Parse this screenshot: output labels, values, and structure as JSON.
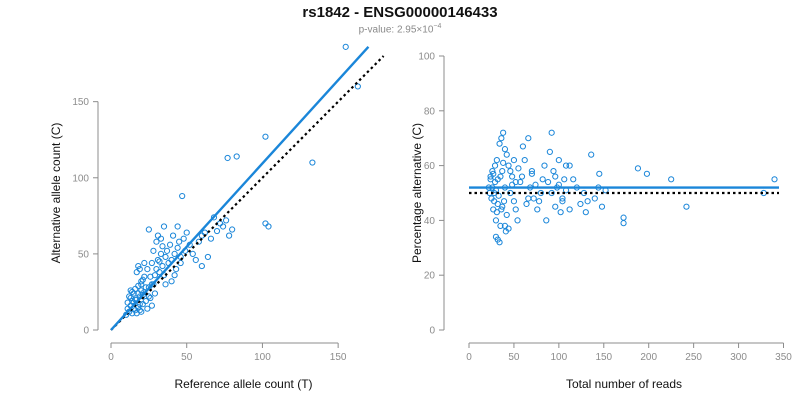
{
  "title": "rs1842 - ENSG00000146433",
  "subtitle": {
    "prefix": "p-value: 2.95×10",
    "exponent": "−4"
  },
  "chart_data": [
    {
      "type": "scatter",
      "xlabel": "Reference allele count (T)",
      "ylabel": "Alternative allele count (C)",
      "xlim": [
        0,
        175
      ],
      "ylim": [
        0,
        180
      ],
      "xticks": [
        0,
        50,
        100,
        150
      ],
      "yticks": [
        0,
        50,
        100,
        150
      ],
      "grid": false,
      "points": [
        [
          10,
          10
        ],
        [
          11,
          14
        ],
        [
          12,
          12
        ],
        [
          13,
          16
        ],
        [
          14,
          11
        ],
        [
          15,
          18
        ],
        [
          16,
          13
        ],
        [
          17,
          20
        ],
        [
          18,
          15
        ],
        [
          19,
          22
        ],
        [
          20,
          12
        ],
        [
          21,
          17
        ],
        [
          22,
          25
        ],
        [
          23,
          19
        ],
        [
          24,
          14
        ],
        [
          25,
          28
        ],
        [
          26,
          21
        ],
        [
          27,
          16
        ],
        [
          28,
          30
        ],
        [
          29,
          24
        ],
        [
          12,
          22
        ],
        [
          13,
          26
        ],
        [
          14,
          19
        ],
        [
          15,
          24
        ],
        [
          16,
          27
        ],
        [
          17,
          11
        ],
        [
          18,
          29
        ],
        [
          19,
          17
        ],
        [
          20,
          32
        ],
        [
          21,
          23
        ],
        [
          11,
          18
        ],
        [
          13,
          21
        ],
        [
          14,
          25
        ],
        [
          15,
          14
        ],
        [
          16,
          20
        ],
        [
          18,
          24
        ],
        [
          19,
          13
        ],
        [
          20,
          26
        ],
        [
          22,
          35
        ],
        [
          23,
          28
        ],
        [
          17,
          38
        ],
        [
          18,
          42
        ],
        [
          19,
          40
        ],
        [
          20,
          30
        ],
        [
          21,
          33
        ],
        [
          22,
          44
        ],
        [
          24,
          40
        ],
        [
          25,
          22
        ],
        [
          26,
          35
        ],
        [
          27,
          30
        ],
        [
          25,
          66
        ],
        [
          27,
          44
        ],
        [
          28,
          52
        ],
        [
          29,
          36
        ],
        [
          30,
          40
        ],
        [
          31,
          46
        ],
        [
          32,
          38
        ],
        [
          33,
          60
        ],
        [
          34,
          55
        ],
        [
          35,
          68
        ],
        [
          30,
          58
        ],
        [
          31,
          62
        ],
        [
          32,
          45
        ],
        [
          33,
          50
        ],
        [
          34,
          42
        ],
        [
          35,
          36
        ],
        [
          36,
          48
        ],
        [
          37,
          52
        ],
        [
          38,
          44
        ],
        [
          39,
          56
        ],
        [
          40,
          46
        ],
        [
          41,
          62
        ],
        [
          42,
          50
        ],
        [
          43,
          40
        ],
        [
          44,
          54
        ],
        [
          45,
          58
        ],
        [
          46,
          48
        ],
        [
          47,
          88
        ],
        [
          48,
          60
        ],
        [
          49,
          52
        ],
        [
          40,
          32
        ],
        [
          42,
          36
        ],
        [
          44,
          68
        ],
        [
          46,
          44
        ],
        [
          50,
          64
        ],
        [
          52,
          56
        ],
        [
          54,
          50
        ],
        [
          56,
          46
        ],
        [
          58,
          58
        ],
        [
          60,
          62
        ],
        [
          62,
          64
        ],
        [
          64,
          48
        ],
        [
          66,
          60
        ],
        [
          68,
          74
        ],
        [
          70,
          65
        ],
        [
          72,
          70
        ],
        [
          74,
          68
        ],
        [
          76,
          72
        ],
        [
          78,
          62
        ],
        [
          80,
          66
        ],
        [
          77,
          113
        ],
        [
          83,
          114
        ],
        [
          102,
          70
        ],
        [
          104,
          68
        ],
        [
          102,
          127
        ],
        [
          133,
          110
        ],
        [
          155,
          186
        ],
        [
          163,
          160
        ],
        [
          60,
          42
        ],
        [
          36,
          30
        ]
      ],
      "fit_line": [
        [
          0,
          0
        ],
        [
          170,
          186
        ]
      ],
      "reference_line": [
        [
          0,
          0
        ],
        [
          180,
          180
        ]
      ]
    },
    {
      "type": "scatter",
      "xlabel": "Total number of reads",
      "ylabel": "Percentage alternative (C)",
      "xlim": [
        0,
        345
      ],
      "ylim": [
        0,
        100
      ],
      "xticks": [
        0,
        50,
        100,
        150,
        200,
        250,
        300,
        350
      ],
      "yticks": [
        0,
        20,
        40,
        60,
        80,
        100
      ],
      "grid": false,
      "points": [
        [
          22,
          52
        ],
        [
          24,
          56
        ],
        [
          25,
          48
        ],
        [
          26,
          58
        ],
        [
          27,
          44
        ],
        [
          28,
          50
        ],
        [
          29,
          54
        ],
        [
          30,
          40
        ],
        [
          31,
          62
        ],
        [
          32,
          46
        ],
        [
          23,
          50
        ],
        [
          24,
          55
        ],
        [
          26,
          52
        ],
        [
          27,
          57
        ],
        [
          28,
          47
        ],
        [
          29,
          60
        ],
        [
          30,
          51
        ],
        [
          31,
          43
        ],
        [
          32,
          55
        ],
        [
          33,
          49
        ],
        [
          30,
          34
        ],
        [
          32,
          33
        ],
        [
          34,
          32
        ],
        [
          35,
          38
        ],
        [
          36,
          44
        ],
        [
          37,
          58
        ],
        [
          38,
          61
        ],
        [
          39,
          47
        ],
        [
          40,
          52
        ],
        [
          41,
          36
        ],
        [
          34,
          68
        ],
        [
          36,
          70
        ],
        [
          38,
          72
        ],
        [
          40,
          66
        ],
        [
          42,
          64
        ],
        [
          44,
          60
        ],
        [
          46,
          58
        ],
        [
          48,
          56
        ],
        [
          50,
          62
        ],
        [
          52,
          54
        ],
        [
          35,
          56
        ],
        [
          37,
          45
        ],
        [
          40,
          38
        ],
        [
          42,
          42
        ],
        [
          44,
          37
        ],
        [
          46,
          50
        ],
        [
          48,
          53
        ],
        [
          50,
          47
        ],
        [
          52,
          44
        ],
        [
          54,
          40
        ],
        [
          55,
          59
        ],
        [
          57,
          54
        ],
        [
          59,
          56
        ],
        [
          60,
          67
        ],
        [
          62,
          62
        ],
        [
          64,
          46
        ],
        [
          66,
          70
        ],
        [
          68,
          52
        ],
        [
          70,
          58
        ],
        [
          72,
          48
        ],
        [
          66,
          48
        ],
        [
          70,
          57
        ],
        [
          74,
          53
        ],
        [
          76,
          44
        ],
        [
          78,
          47
        ],
        [
          80,
          50
        ],
        [
          82,
          55
        ],
        [
          84,
          60
        ],
        [
          86,
          40
        ],
        [
          88,
          54
        ],
        [
          90,
          65
        ],
        [
          92,
          72
        ],
        [
          94,
          58
        ],
        [
          96,
          45
        ],
        [
          98,
          52
        ],
        [
          100,
          62
        ],
        [
          102,
          43
        ],
        [
          104,
          48
        ],
        [
          106,
          55
        ],
        [
          108,
          60
        ],
        [
          92,
          50
        ],
        [
          96,
          56
        ],
        [
          100,
          53
        ],
        [
          104,
          47
        ],
        [
          108,
          51
        ],
        [
          112,
          44
        ],
        [
          116,
          55
        ],
        [
          120,
          52
        ],
        [
          124,
          46
        ],
        [
          128,
          50
        ],
        [
          132,
          47
        ],
        [
          136,
          64
        ],
        [
          140,
          48
        ],
        [
          144,
          52
        ],
        [
          148,
          45
        ],
        [
          152,
          51
        ],
        [
          172,
          39
        ],
        [
          172,
          41
        ],
        [
          188,
          59
        ],
        [
          198,
          57
        ],
        [
          225,
          55
        ],
        [
          242,
          45
        ],
        [
          328,
          50
        ],
        [
          340,
          55
        ],
        [
          112,
          60
        ],
        [
          130,
          43
        ],
        [
          145,
          57
        ]
      ],
      "fit_line": [
        [
          0,
          52
        ],
        [
          345,
          52
        ]
      ],
      "reference_line": [
        [
          0,
          50
        ],
        [
          345,
          50
        ]
      ]
    }
  ]
}
